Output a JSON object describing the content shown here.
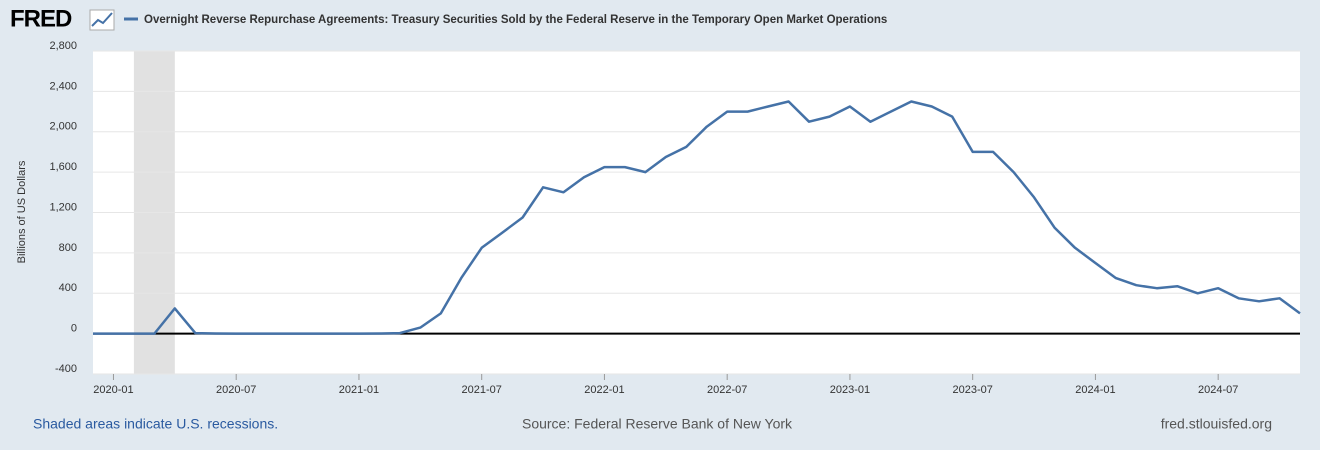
{
  "chart_data": {
    "type": "line",
    "logo": "FRED",
    "title": "Overnight Reverse Repurchase Agreements: Treasury Securities Sold by the Federal Reserve in the Temporary Open Market Operations",
    "y_label": "Billions of US Dollars",
    "x": [
      "2019-12",
      "2020-01",
      "2020-02",
      "2020-03",
      "2020-04",
      "2020-05",
      "2020-06",
      "2020-07",
      "2020-08",
      "2020-09",
      "2020-10",
      "2020-11",
      "2020-12",
      "2021-01",
      "2021-02",
      "2021-03",
      "2021-04",
      "2021-05",
      "2021-06",
      "2021-07",
      "2021-08",
      "2021-09",
      "2021-10",
      "2021-11",
      "2021-12",
      "2022-01",
      "2022-02",
      "2022-03",
      "2022-04",
      "2022-05",
      "2022-06",
      "2022-07",
      "2022-08",
      "2022-09",
      "2022-10",
      "2022-11",
      "2022-12",
      "2023-01",
      "2023-02",
      "2023-03",
      "2023-04",
      "2023-05",
      "2023-06",
      "2023-07",
      "2023-08",
      "2023-09",
      "2023-10",
      "2023-11",
      "2023-12",
      "2024-01",
      "2024-02",
      "2024-03",
      "2024-04",
      "2024-05",
      "2024-06",
      "2024-07",
      "2024-08",
      "2024-09",
      "2024-10",
      "2024-11"
    ],
    "series": [
      {
        "name": "Overnight Reverse Repurchase Agreements",
        "color": "#4572a7",
        "values": [
          0,
          0,
          0,
          0,
          250,
          5,
          1,
          0,
          0,
          0,
          0,
          0,
          0,
          0,
          1,
          5,
          60,
          200,
          550,
          850,
          1000,
          1150,
          1450,
          1400,
          1550,
          1650,
          1650,
          1600,
          1750,
          1850,
          2050,
          2200,
          2200,
          2250,
          2300,
          2100,
          2150,
          2250,
          2100,
          2200,
          2300,
          2250,
          2150,
          1800,
          1800,
          1600,
          1350,
          1050,
          850,
          700,
          550,
          480,
          450,
          470,
          400,
          450,
          350,
          320,
          350,
          200
        ]
      }
    ],
    "xlim": [
      "2019-12",
      "2024-11"
    ],
    "xticks": [
      "2020-01",
      "2020-07",
      "2021-01",
      "2021-07",
      "2022-01",
      "2022-07",
      "2023-01",
      "2023-07",
      "2024-01",
      "2024-07"
    ],
    "ylim": [
      -400,
      2800
    ],
    "yticks": [
      -400,
      0,
      400,
      800,
      {
        "value": 1200,
        "label": "1,200"
      },
      {
        "value": 1600,
        "label": "1,600"
      },
      {
        "value": 2000,
        "label": "2,000"
      },
      {
        "value": 2400,
        "label": "2,400"
      },
      {
        "value": 2800,
        "label": "2,800"
      }
    ],
    "grid": true,
    "recessions": [
      {
        "start": "2020-02",
        "end": "2020-04"
      }
    ],
    "recession_note": "Shaded areas indicate U.S. recessions.",
    "source": "Source: Federal Reserve Bank of New York",
    "site": "fred.stlouisfed.org"
  }
}
